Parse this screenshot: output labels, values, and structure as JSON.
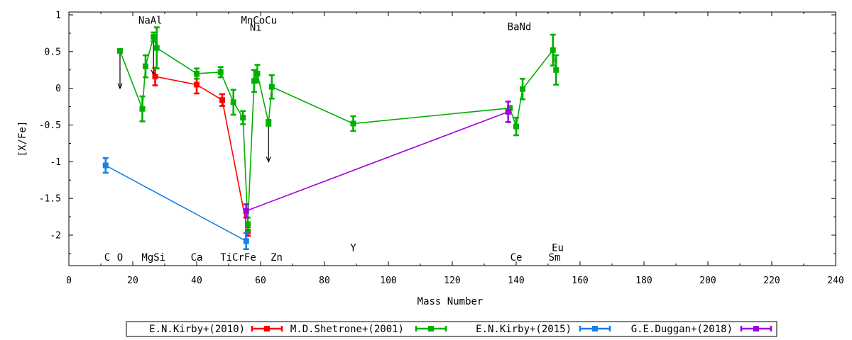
{
  "chart_data": {
    "type": "scatter",
    "title": "",
    "xlabel": "Mass Number",
    "ylabel": "[X/Fe]",
    "xlim": [
      0,
      240
    ],
    "ylim": [
      -2.4,
      1.05
    ],
    "xticks": [
      0,
      20,
      40,
      60,
      80,
      100,
      120,
      140,
      160,
      180,
      200,
      220,
      240
    ],
    "xtick_labels": [
      "0",
      "20",
      "40",
      "60",
      "80",
      "100",
      "120",
      "140",
      "160",
      "180",
      "200",
      "220",
      "240"
    ],
    "yticks": [
      1,
      0.5,
      0,
      -0.5,
      -1,
      -1.5,
      -2
    ],
    "ytick_labels": [
      "1",
      "0.5",
      "0",
      "-0.5",
      "-1",
      "-1.5",
      "-2"
    ],
    "grid": false,
    "legend_position": "bottom",
    "series": [
      {
        "name": "E.N.Kirby+(2010)",
        "color": "#ff0000",
        "points": [
          {
            "x": 27,
            "y": 0.16,
            "err": 0.12
          },
          {
            "x": 40,
            "y": 0.05,
            "err": 0.12
          },
          {
            "x": 48,
            "y": -0.16,
            "err": 0.08
          },
          {
            "x": 56,
            "y": -1.95,
            "err": 0.06
          }
        ]
      },
      {
        "name": "M.D.Shetrone+(2001)",
        "color": "#00b000",
        "points": [
          {
            "x": 16,
            "y": 0.51,
            "err": 0.02
          },
          {
            "x": 23,
            "y": -0.28,
            "err": 0.17
          },
          {
            "x": 24,
            "y": 0.3,
            "err": 0.15
          },
          {
            "x": 26.5,
            "y": 0.7,
            "err": 0.06
          },
          {
            "x": 27.5,
            "y": 0.55,
            "err": 0.28
          },
          {
            "x": 40,
            "y": 0.2,
            "err": 0.07
          },
          {
            "x": 47.5,
            "y": 0.22,
            "err": 0.07
          },
          {
            "x": 51.5,
            "y": -0.19,
            "err": 0.17
          },
          {
            "x": 54.5,
            "y": -0.4,
            "err": 0.09
          },
          {
            "x": 56,
            "y": -1.85,
            "err": 0.09
          },
          {
            "x": 58,
            "y": 0.1,
            "err": 0.15
          },
          {
            "x": 59,
            "y": 0.2,
            "err": 0.12
          },
          {
            "x": 62.5,
            "y": -0.47,
            "err": 0.04
          },
          {
            "x": 63.5,
            "y": 0.02,
            "err": 0.16
          },
          {
            "x": 89,
            "y": -0.48,
            "err": 0.1
          },
          {
            "x": 138,
            "y": -0.27,
            "err": 0.03
          },
          {
            "x": 140,
            "y": -0.52,
            "err": 0.12
          },
          {
            "x": 142,
            "y": -0.01,
            "err": 0.14
          },
          {
            "x": 151.5,
            "y": 0.52,
            "err": 0.21
          },
          {
            "x": 152.5,
            "y": 0.25,
            "err": 0.2
          }
        ]
      },
      {
        "name": "E.N.Kirby+(2015)",
        "color": "#1a7fe8",
        "points": [
          {
            "x": 11.5,
            "y": -1.05,
            "err": 0.1
          },
          {
            "x": 55.5,
            "y": -2.08,
            "err": 0.11
          }
        ]
      },
      {
        "name": "G.E.Duggan+(2018)",
        "color": "#a000e0",
        "points": [
          {
            "x": 55.5,
            "y": -1.67,
            "err": 0.09
          },
          {
            "x": 137.5,
            "y": -0.32,
            "err": 0.14
          }
        ]
      }
    ],
    "upper_limits": [
      {
        "x": 16,
        "y_from": 0.51,
        "y_to": 0.0
      },
      {
        "x": 26.5,
        "y_from": 0.68,
        "y_to": 0.18
      },
      {
        "x": 62.5,
        "y_from": -0.47,
        "y_to": -1.0
      }
    ],
    "element_labels": [
      {
        "text": "C",
        "x": 12,
        "y": -2.3
      },
      {
        "text": "O",
        "x": 16,
        "y": -2.3
      },
      {
        "text": "MgSi",
        "x": 26.5,
        "y": -2.3
      },
      {
        "text": "Ca",
        "x": 40,
        "y": -2.3
      },
      {
        "text": "TiCrFe",
        "x": 53,
        "y": -2.3
      },
      {
        "text": "Zn",
        "x": 65,
        "y": -2.3
      },
      {
        "text": "NaAl",
        "x": 25.5,
        "y": 0.93
      },
      {
        "text": "MnCoCu",
        "x": 59.5,
        "y": 0.93
      },
      {
        "text": "Ni",
        "x": 58.5,
        "y": 0.83
      },
      {
        "text": "Y",
        "x": 89,
        "y": -2.17
      },
      {
        "text": "Ce",
        "x": 140,
        "y": -2.3
      },
      {
        "text": "Sm",
        "x": 152,
        "y": -2.3
      },
      {
        "text": "Eu",
        "x": 153,
        "y": -2.17
      },
      {
        "text": "BaNd",
        "x": 141,
        "y": 0.84
      }
    ]
  }
}
